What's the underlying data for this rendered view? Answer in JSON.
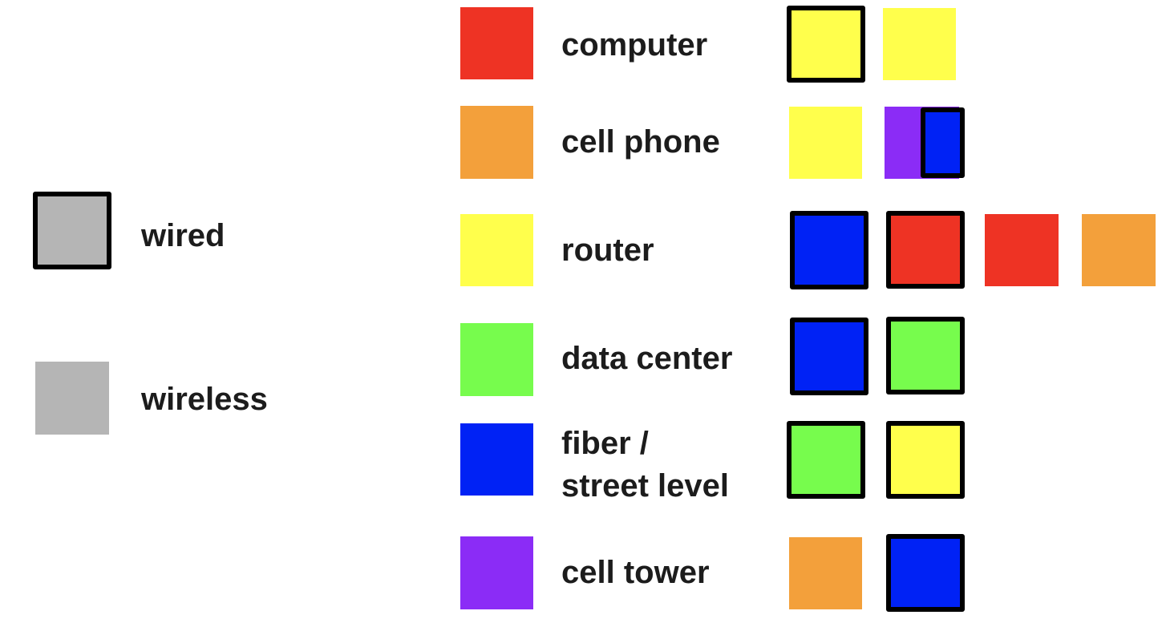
{
  "colors": {
    "red": "#ee3324",
    "orange": "#f3a03b",
    "yellow": "#ffff4c",
    "green": "#77fc4d",
    "blue": "#0022f5",
    "purple": "#8b2cf6",
    "gray": "#b5b5b5",
    "border": "#000000",
    "text": "#1c1c1c"
  },
  "legend": {
    "wired": {
      "label": "wired",
      "color": "gray",
      "wired": true
    },
    "wireless": {
      "label": "wireless",
      "color": "gray",
      "wired": false
    }
  },
  "devices": [
    {
      "key": "computer",
      "label": "computer",
      "color": "red",
      "connections": [
        {
          "color": "yellow",
          "wired": true
        },
        {
          "color": "yellow",
          "wired": false
        }
      ]
    },
    {
      "key": "cell-phone",
      "label": "cell phone",
      "color": "orange",
      "connections": [
        {
          "color": "yellow",
          "wired": false
        },
        {
          "color": "purple",
          "wired": false,
          "overlay": {
            "color": "blue",
            "wired": true
          }
        }
      ]
    },
    {
      "key": "router",
      "label": "router",
      "color": "yellow",
      "connections": [
        {
          "color": "blue",
          "wired": true
        },
        {
          "color": "red",
          "wired": true
        },
        {
          "color": "red",
          "wired": false
        },
        {
          "color": "orange",
          "wired": false
        }
      ]
    },
    {
      "key": "data-center",
      "label": "data center",
      "color": "green",
      "connections": [
        {
          "color": "blue",
          "wired": true
        },
        {
          "color": "green",
          "wired": true
        }
      ]
    },
    {
      "key": "fiber-street-level",
      "label": "fiber / street level",
      "label_lines": [
        "fiber /",
        "street level"
      ],
      "color": "blue",
      "connections": [
        {
          "color": "green",
          "wired": true
        },
        {
          "color": "yellow",
          "wired": true
        }
      ]
    },
    {
      "key": "cell-tower",
      "label": "cell tower",
      "color": "purple",
      "connections": [
        {
          "color": "orange",
          "wired": false
        },
        {
          "color": "blue",
          "wired": true
        }
      ]
    }
  ]
}
